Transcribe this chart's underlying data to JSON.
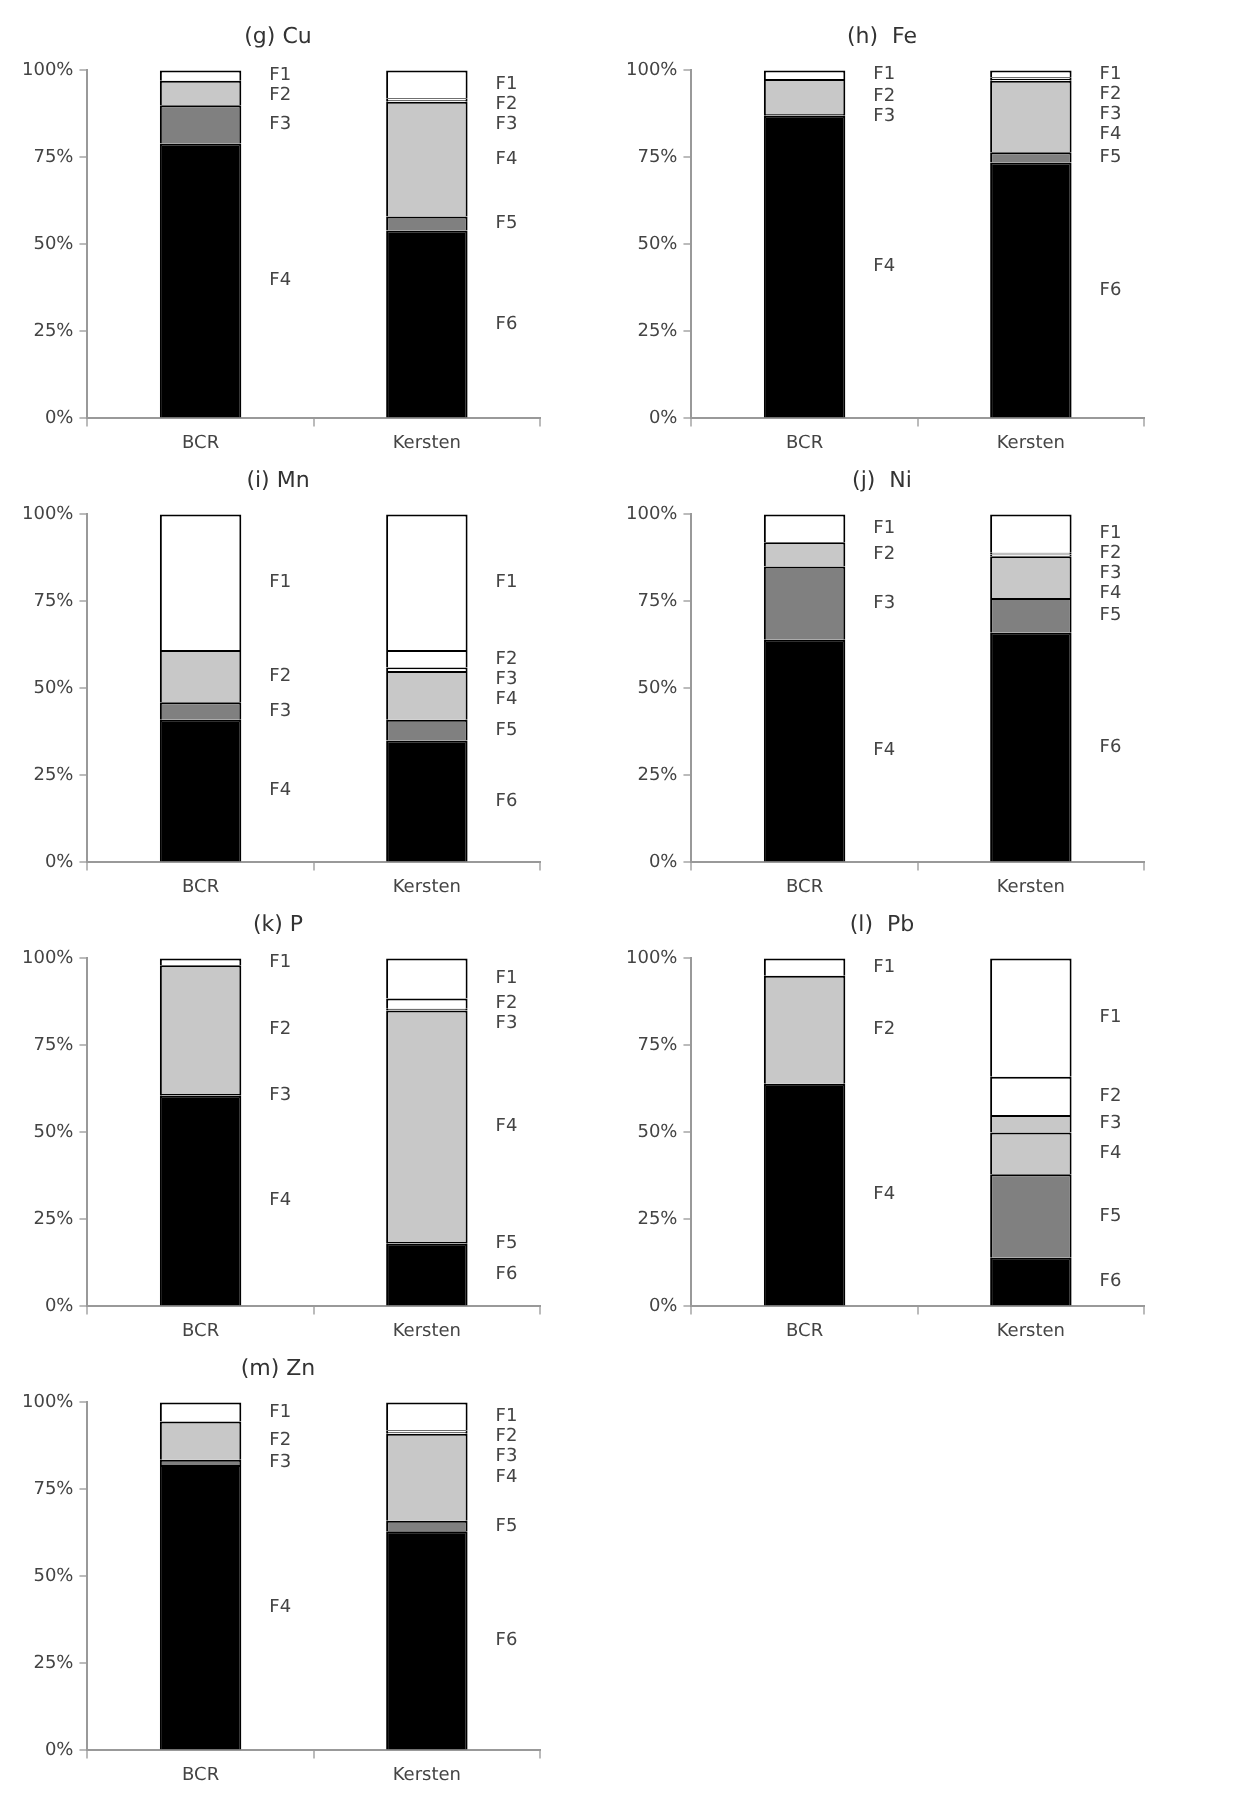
{
  "chart_data": [
    {
      "type": "bar",
      "title": "(g) Cu",
      "categories": [
        "BCR",
        "Kersten"
      ],
      "stacked": true,
      "legend": false,
      "ylim": [
        0,
        100
      ],
      "yticks": [
        {
          "value": 0,
          "label": "0%"
        },
        {
          "value": 25,
          "label": "25%"
        },
        {
          "value": 50,
          "label": "50%"
        },
        {
          "value": 75,
          "label": "75%"
        },
        {
          "value": 100,
          "label": "100%"
        }
      ],
      "series": [
        {
          "name": "F6",
          "colors": [
            null,
            "#000000"
          ],
          "values": [
            null,
            54
          ]
        },
        {
          "name": "F5",
          "colors": [
            null,
            "#808080"
          ],
          "values": [
            null,
            4
          ]
        },
        {
          "name": "F4",
          "colors": [
            "#000000",
            "#c8c8c8"
          ],
          "values": [
            79,
            33
          ]
        },
        {
          "name": "F3",
          "colors": [
            "#808080",
            "#ffffff"
          ],
          "values": [
            11,
            0.5
          ]
        },
        {
          "name": "F2",
          "colors": [
            "#c8c8c8",
            "#ffffff"
          ],
          "values": [
            7,
            0.5
          ]
        },
        {
          "name": "F1",
          "colors": [
            "#ffffff",
            "#ffffff"
          ],
          "values": [
            3,
            8
          ]
        }
      ]
    },
    {
      "type": "bar",
      "title": "(h)  Fe",
      "categories": [
        "BCR",
        "Kersten"
      ],
      "stacked": true,
      "legend": false,
      "ylim": [
        0,
        100
      ],
      "yticks": [
        {
          "value": 0,
          "label": "0%"
        },
        {
          "value": 25,
          "label": "25%"
        },
        {
          "value": 50,
          "label": "50%"
        },
        {
          "value": 75,
          "label": "75%"
        },
        {
          "value": 100,
          "label": "100%"
        }
      ],
      "series": [
        {
          "name": "F6",
          "colors": [
            null,
            "#000000"
          ],
          "values": [
            null,
            73.5
          ]
        },
        {
          "name": "F5",
          "colors": [
            null,
            "#808080"
          ],
          "values": [
            null,
            3
          ]
        },
        {
          "name": "F4",
          "colors": [
            "#000000",
            "#c8c8c8"
          ],
          "values": [
            87,
            20.5
          ]
        },
        {
          "name": "F3",
          "colors": [
            "#808080",
            "#ffffff"
          ],
          "values": [
            0.5,
            0.5
          ]
        },
        {
          "name": "F2",
          "colors": [
            "#c8c8c8",
            "#ffffff"
          ],
          "values": [
            10,
            0.5
          ]
        },
        {
          "name": "F1",
          "colors": [
            "#ffffff",
            "#ffffff"
          ],
          "values": [
            2.5,
            2
          ]
        }
      ]
    },
    {
      "type": "bar",
      "title": "(i) Mn",
      "categories": [
        "BCR",
        "Kersten"
      ],
      "stacked": true,
      "legend": false,
      "ylim": [
        0,
        100
      ],
      "yticks": [
        {
          "value": 0,
          "label": "0%"
        },
        {
          "value": 25,
          "label": "25%"
        },
        {
          "value": 50,
          "label": "50%"
        },
        {
          "value": 75,
          "label": "75%"
        },
        {
          "value": 100,
          "label": "100%"
        }
      ],
      "series": [
        {
          "name": "F6",
          "colors": [
            null,
            "#000000"
          ],
          "values": [
            null,
            35
          ]
        },
        {
          "name": "F5",
          "colors": [
            null,
            "#808080"
          ],
          "values": [
            null,
            6
          ]
        },
        {
          "name": "F4",
          "colors": [
            "#000000",
            "#c8c8c8"
          ],
          "values": [
            41,
            14
          ]
        },
        {
          "name": "F3",
          "colors": [
            "#808080",
            "#ffffff"
          ],
          "values": [
            5,
            1
          ]
        },
        {
          "name": "F2",
          "colors": [
            "#c8c8c8",
            "#ffffff"
          ],
          "values": [
            15,
            5
          ]
        },
        {
          "name": "F1",
          "colors": [
            "#ffffff",
            "#ffffff"
          ],
          "values": [
            39,
            39
          ]
        }
      ]
    },
    {
      "type": "bar",
      "title": "(j)  Ni",
      "categories": [
        "BCR",
        "Kersten"
      ],
      "stacked": true,
      "legend": false,
      "ylim": [
        0,
        100
      ],
      "yticks": [
        {
          "value": 0,
          "label": "0%"
        },
        {
          "value": 25,
          "label": "25%"
        },
        {
          "value": 50,
          "label": "50%"
        },
        {
          "value": 75,
          "label": "75%"
        },
        {
          "value": 100,
          "label": "100%"
        }
      ],
      "series": [
        {
          "name": "F6",
          "colors": [
            null,
            "#000000"
          ],
          "values": [
            null,
            66
          ]
        },
        {
          "name": "F5",
          "colors": [
            null,
            "#808080"
          ],
          "values": [
            null,
            10
          ]
        },
        {
          "name": "F4",
          "colors": [
            "#000000",
            "#c8c8c8"
          ],
          "values": [
            64,
            12
          ]
        },
        {
          "name": "F3",
          "colors": [
            "#808080",
            "#ffffff"
          ],
          "values": [
            21,
            0.5
          ]
        },
        {
          "name": "F2",
          "colors": [
            "#c8c8c8",
            "#ffffff"
          ],
          "values": [
            7,
            0.5
          ]
        },
        {
          "name": "F1",
          "colors": [
            "#ffffff",
            "#ffffff"
          ],
          "values": [
            8,
            11
          ]
        }
      ]
    },
    {
      "type": "bar",
      "title": "(k) P",
      "categories": [
        "BCR",
        "Kersten"
      ],
      "stacked": true,
      "legend": false,
      "ylim": [
        0,
        100
      ],
      "yticks": [
        {
          "value": 0,
          "label": "0%"
        },
        {
          "value": 25,
          "label": "25%"
        },
        {
          "value": 50,
          "label": "50%"
        },
        {
          "value": 75,
          "label": "75%"
        },
        {
          "value": 100,
          "label": "100%"
        }
      ],
      "series": [
        {
          "name": "F6",
          "colors": [
            null,
            "#000000"
          ],
          "values": [
            null,
            18
          ]
        },
        {
          "name": "F5",
          "colors": [
            null,
            "#808080"
          ],
          "values": [
            null,
            0.5
          ]
        },
        {
          "name": "F4",
          "colors": [
            "#000000",
            "#c8c8c8"
          ],
          "values": [
            60.5,
            66.5
          ]
        },
        {
          "name": "F3",
          "colors": [
            "#808080",
            "#ffffff"
          ],
          "values": [
            0.5,
            0.5
          ]
        },
        {
          "name": "F2",
          "colors": [
            "#c8c8c8",
            "#ffffff"
          ],
          "values": [
            37,
            3
          ]
        },
        {
          "name": "F1",
          "colors": [
            "#ffffff",
            "#ffffff"
          ],
          "values": [
            2,
            11.5
          ]
        }
      ]
    },
    {
      "type": "bar",
      "title": "(l)  Pb",
      "categories": [
        "BCR",
        "Kersten"
      ],
      "stacked": true,
      "legend": false,
      "ylim": [
        0,
        100
      ],
      "yticks": [
        {
          "value": 0,
          "label": "0%"
        },
        {
          "value": 25,
          "label": "25%"
        },
        {
          "value": 50,
          "label": "50%"
        },
        {
          "value": 75,
          "label": "75%"
        },
        {
          "value": 100,
          "label": "100%"
        }
      ],
      "series": [
        {
          "name": "F6",
          "colors": [
            null,
            "#000000"
          ],
          "values": [
            null,
            14
          ]
        },
        {
          "name": "F5",
          "colors": [
            null,
            "#808080"
          ],
          "values": [
            null,
            24
          ]
        },
        {
          "name": "F4",
          "colors": [
            "#000000",
            "#c8c8c8"
          ],
          "values": [
            64,
            12
          ]
        },
        {
          "name": "F3",
          "colors": [
            null,
            "#c8c8c8"
          ],
          "values": [
            null,
            5
          ]
        },
        {
          "name": "F2",
          "colors": [
            "#c8c8c8",
            "#ffffff"
          ],
          "values": [
            31,
            11
          ]
        },
        {
          "name": "F1",
          "colors": [
            "#ffffff",
            "#ffffff"
          ],
          "values": [
            5,
            34
          ]
        }
      ]
    },
    {
      "type": "bar",
      "title": "(m) Zn",
      "categories": [
        "BCR",
        "Kersten"
      ],
      "stacked": true,
      "legend": false,
      "ylim": [
        0,
        100
      ],
      "yticks": [
        {
          "value": 0,
          "label": "0%"
        },
        {
          "value": 25,
          "label": "25%"
        },
        {
          "value": 50,
          "label": "50%"
        },
        {
          "value": 75,
          "label": "75%"
        },
        {
          "value": 100,
          "label": "100%"
        }
      ],
      "series": [
        {
          "name": "F6",
          "colors": [
            null,
            "#000000"
          ],
          "values": [
            null,
            63
          ]
        },
        {
          "name": "F5",
          "colors": [
            null,
            "#808080"
          ],
          "values": [
            null,
            3
          ]
        },
        {
          "name": "F4",
          "colors": [
            "#000000",
            "#c8c8c8"
          ],
          "values": [
            82,
            25
          ]
        },
        {
          "name": "F3",
          "colors": [
            "#808080",
            "#ffffff"
          ],
          "values": [
            1.5,
            0.5
          ]
        },
        {
          "name": "F2",
          "colors": [
            "#c8c8c8",
            "#ffffff"
          ],
          "values": [
            11,
            0.5
          ]
        },
        {
          "name": "F1",
          "colors": [
            "#ffffff",
            "#ffffff"
          ],
          "values": [
            5.5,
            8
          ]
        }
      ]
    }
  ]
}
